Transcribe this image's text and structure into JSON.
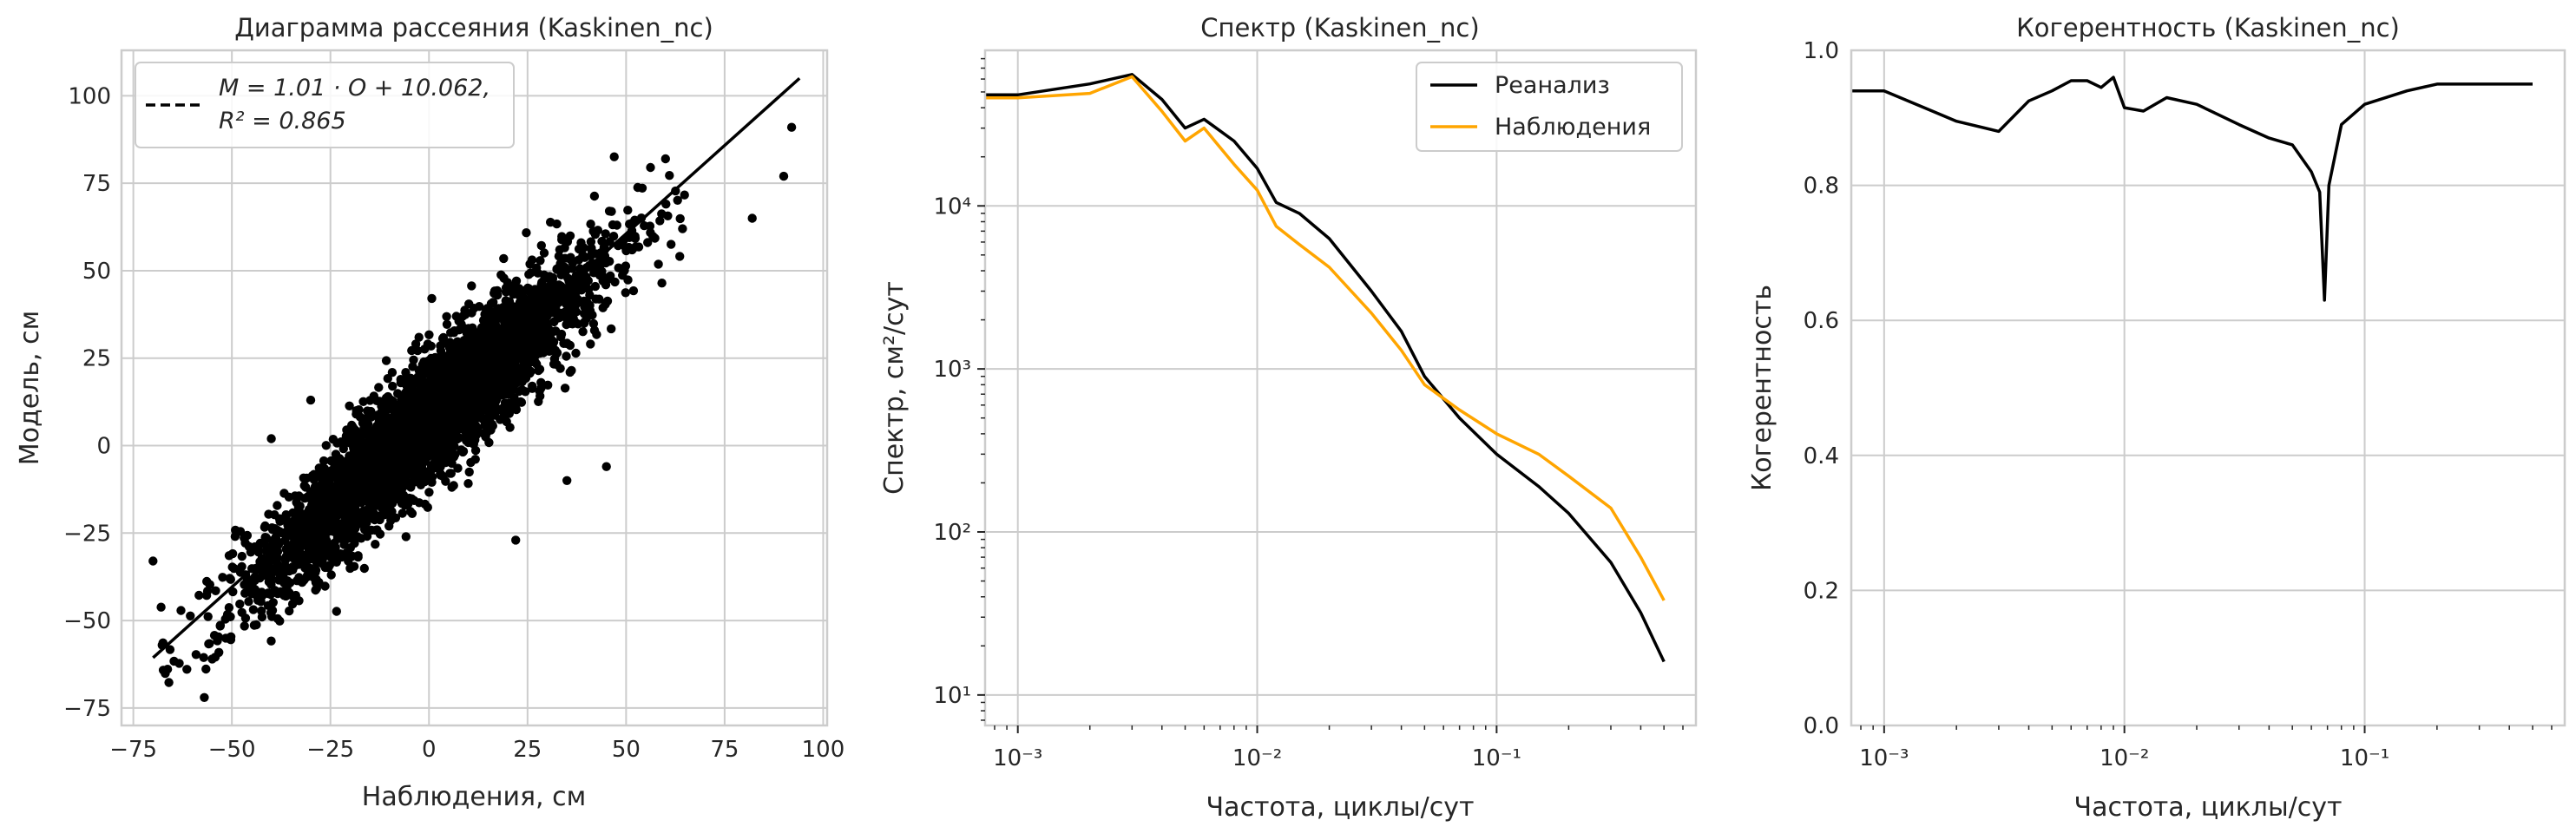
{
  "chart_data": [
    {
      "type": "scatter",
      "title": "Диаграмма рассеяния (Kaskinen_nc)",
      "xlabel": "Наблюдения, см",
      "ylabel": "Модель, см",
      "xlim": [
        -78,
        101
      ],
      "ylim": [
        -80,
        113
      ],
      "xticks": [
        -75,
        -50,
        -25,
        0,
        25,
        50,
        75,
        100
      ],
      "yticks": [
        -75,
        -50,
        -25,
        0,
        25,
        50,
        75,
        100
      ],
      "grid": true,
      "point_color": "#000000",
      "fit": {
        "slope": 1.01,
        "intercept": 10.062,
        "r2": 0.865,
        "x_range": [
          -70,
          94
        ],
        "style": "solid",
        "color": "#000000"
      },
      "legend": {
        "position": "top-left",
        "line1": "M = 1.01 · O + 10.062,",
        "line2": "R² = 0.865"
      },
      "point_cloud": {
        "seed": 12345,
        "count": 3600,
        "x_center": 0,
        "x_spread": 22,
        "residual_spread": 9
      },
      "outliers": [
        {
          "x": -70,
          "y": -33
        },
        {
          "x": -57,
          "y": -72
        },
        {
          "x": -55,
          "y": -61
        },
        {
          "x": 45,
          "y": -6
        },
        {
          "x": 22,
          "y": -27
        },
        {
          "x": 92,
          "y": 91
        },
        {
          "x": 90,
          "y": 77
        },
        {
          "x": 82,
          "y": 65
        },
        {
          "x": -40,
          "y": 2
        },
        {
          "x": 35,
          "y": -10
        },
        {
          "x": -30,
          "y": 13
        },
        {
          "x": 60,
          "y": 82
        }
      ]
    },
    {
      "type": "line",
      "title": "Спектр (Kaskinen_nc)",
      "xlabel": "Частота, циклы/сут",
      "ylabel": "Спектр, см²/сут",
      "xscale": "log",
      "yscale": "log",
      "xlim": [
        0.00073,
        0.68
      ],
      "ylim": [
        6.5,
        90000
      ],
      "xticks": [
        0.001,
        0.01,
        0.1
      ],
      "xtick_labels": [
        "10⁻³",
        "10⁻²",
        "10⁻¹"
      ],
      "yticks": [
        10,
        100,
        1000,
        10000
      ],
      "ytick_labels": [
        "10¹",
        "10²",
        "10³",
        "10⁴"
      ],
      "grid": true,
      "legend": {
        "position": "top-right"
      },
      "series": [
        {
          "name": "Реанализ",
          "color": "#000000",
          "points": [
            [
              0.00073,
              48000
            ],
            [
              0.001,
              48000
            ],
            [
              0.002,
              56000
            ],
            [
              0.003,
              64000
            ],
            [
              0.004,
              45000
            ],
            [
              0.005,
              30000
            ],
            [
              0.006,
              34000
            ],
            [
              0.008,
              25000
            ],
            [
              0.01,
              17000
            ],
            [
              0.012,
              10500
            ],
            [
              0.015,
              9000
            ],
            [
              0.02,
              6300
            ],
            [
              0.03,
              3000
            ],
            [
              0.04,
              1700
            ],
            [
              0.05,
              900
            ],
            [
              0.07,
              500
            ],
            [
              0.1,
              300
            ],
            [
              0.15,
              190
            ],
            [
              0.2,
              130
            ],
            [
              0.3,
              65
            ],
            [
              0.4,
              32
            ],
            [
              0.5,
              16
            ]
          ]
        },
        {
          "name": "Наблюдения",
          "color": "#ffa500",
          "points": [
            [
              0.00073,
              46000
            ],
            [
              0.001,
              46000
            ],
            [
              0.002,
              49000
            ],
            [
              0.003,
              62000
            ],
            [
              0.004,
              38000
            ],
            [
              0.005,
              25000
            ],
            [
              0.006,
              30000
            ],
            [
              0.008,
              18000
            ],
            [
              0.01,
              12500
            ],
            [
              0.012,
              7500
            ],
            [
              0.015,
              5800
            ],
            [
              0.02,
              4200
            ],
            [
              0.03,
              2200
            ],
            [
              0.04,
              1300
            ],
            [
              0.05,
              800
            ],
            [
              0.07,
              560
            ],
            [
              0.1,
              400
            ],
            [
              0.15,
              300
            ],
            [
              0.2,
              220
            ],
            [
              0.3,
              140
            ],
            [
              0.4,
              70
            ],
            [
              0.5,
              38
            ]
          ]
        }
      ]
    },
    {
      "type": "line",
      "title": "Когерентность (Kaskinen_nc)",
      "xlabel": "Частота, циклы/сут",
      "ylabel": "Когерентность",
      "xscale": "log",
      "xlim": [
        0.00073,
        0.68
      ],
      "ylim": [
        0,
        1
      ],
      "xticks": [
        0.001,
        0.01,
        0.1
      ],
      "xtick_labels": [
        "10⁻³",
        "10⁻²",
        "10⁻¹"
      ],
      "yticks": [
        0.0,
        0.2,
        0.4,
        0.6,
        0.8,
        1.0
      ],
      "ytick_labels": [
        "0.0",
        "0.2",
        "0.4",
        "0.6",
        "0.8",
        "1.0"
      ],
      "grid": true,
      "series": [
        {
          "color": "#000000",
          "points": [
            [
              0.00073,
              0.94
            ],
            [
              0.001,
              0.94
            ],
            [
              0.002,
              0.895
            ],
            [
              0.003,
              0.88
            ],
            [
              0.004,
              0.925
            ],
            [
              0.005,
              0.94
            ],
            [
              0.006,
              0.955
            ],
            [
              0.007,
              0.955
            ],
            [
              0.008,
              0.945
            ],
            [
              0.009,
              0.96
            ],
            [
              0.01,
              0.915
            ],
            [
              0.012,
              0.91
            ],
            [
              0.015,
              0.93
            ],
            [
              0.02,
              0.92
            ],
            [
              0.03,
              0.89
            ],
            [
              0.04,
              0.87
            ],
            [
              0.05,
              0.86
            ],
            [
              0.06,
              0.82
            ],
            [
              0.065,
              0.79
            ],
            [
              0.068,
              0.63
            ],
            [
              0.071,
              0.8
            ],
            [
              0.08,
              0.89
            ],
            [
              0.1,
              0.92
            ],
            [
              0.15,
              0.94
            ],
            [
              0.2,
              0.95
            ],
            [
              0.3,
              0.95
            ],
            [
              0.4,
              0.95
            ],
            [
              0.5,
              0.95
            ]
          ]
        }
      ]
    }
  ]
}
